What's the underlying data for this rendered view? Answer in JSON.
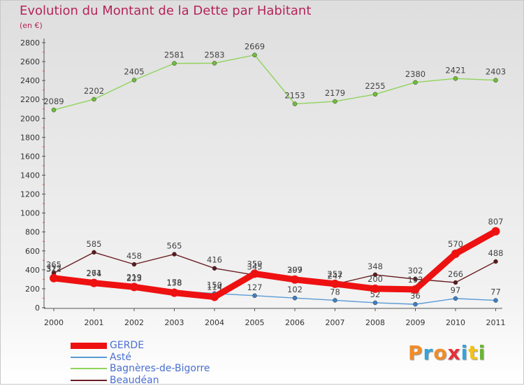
{
  "header": {
    "title": "Evolution du Montant de la Dette par Habitant",
    "unit": "(en €)"
  },
  "brand": {
    "text": "Proxiti",
    "colors": [
      "#f28c28",
      "#35a3d8",
      "#f28c28",
      "#e8303a",
      "#35a3d8",
      "#f2c21b",
      "#6bb536"
    ]
  },
  "chart_data": {
    "type": "line",
    "x": [
      "2000",
      "2001",
      "2002",
      "2003",
      "2004",
      "2005",
      "2006",
      "2007",
      "2008",
      "2009",
      "2010",
      "2011"
    ],
    "ylim": [
      0,
      2800
    ],
    "yticks": [
      0,
      200,
      400,
      600,
      800,
      1000,
      1200,
      1400,
      1600,
      1800,
      2000,
      2200,
      2400,
      2600,
      2800
    ],
    "grid": false,
    "legend_position": "bottom-left",
    "series": [
      {
        "name": "Bagnères-de-Bigorre",
        "color": "#8fd45a",
        "marker": "#6fbe38",
        "values": [
          2089,
          2202,
          2405,
          2581,
          2583,
          2669,
          2153,
          2179,
          2255,
          2380,
          2421,
          2403
        ]
      },
      {
        "name": "Beaudéan",
        "color": "#6b1f24",
        "marker": "#5a1a1f",
        "values": [
          365,
          585,
          458,
          565,
          416,
          345,
          309,
          247,
          348,
          302,
          266,
          488
        ]
      },
      {
        "name": "Asté",
        "color": "#5b9bd5",
        "marker": "#3e7fc0",
        "values": [
          322,
          274,
          223,
          178,
          150,
          127,
          102,
          78,
          52,
          36,
          97,
          77
        ]
      },
      {
        "name": "GERDE",
        "color": "#ee1111",
        "marker": "#ee1111",
        "values": [
          312,
          261,
          219,
          158,
          114,
          359,
          297,
          252,
          200,
          193,
          570,
          807
        ]
      }
    ]
  }
}
